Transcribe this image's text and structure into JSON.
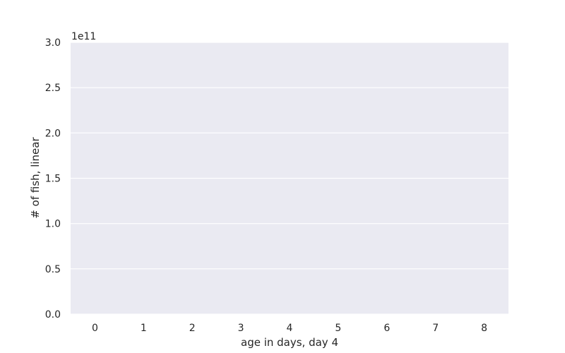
{
  "chart_data": {
    "type": "bar",
    "xlabel": "age in days, day 4",
    "ylabel": "# of fish, linear",
    "y_offset_text": "1e11",
    "categories": [
      "0",
      "1",
      "2",
      "3",
      "4",
      "5",
      "6",
      "7",
      "8"
    ],
    "values": [
      0,
      0,
      0,
      0,
      0,
      0,
      0,
      0,
      0
    ],
    "ylim": [
      0,
      3.0
    ],
    "y_ticks": [
      0.0,
      0.5,
      1.0,
      1.5,
      2.0,
      2.5,
      3.0
    ],
    "y_tick_labels": [
      "0.0",
      "0.5",
      "1.0",
      "1.5",
      "2.0",
      "2.5",
      "3.0"
    ],
    "grid": true,
    "colors": {
      "plot_background": "#eaeaf2",
      "grid": "#ffffff",
      "text": "#262626",
      "bar": "#4c72b0"
    }
  }
}
